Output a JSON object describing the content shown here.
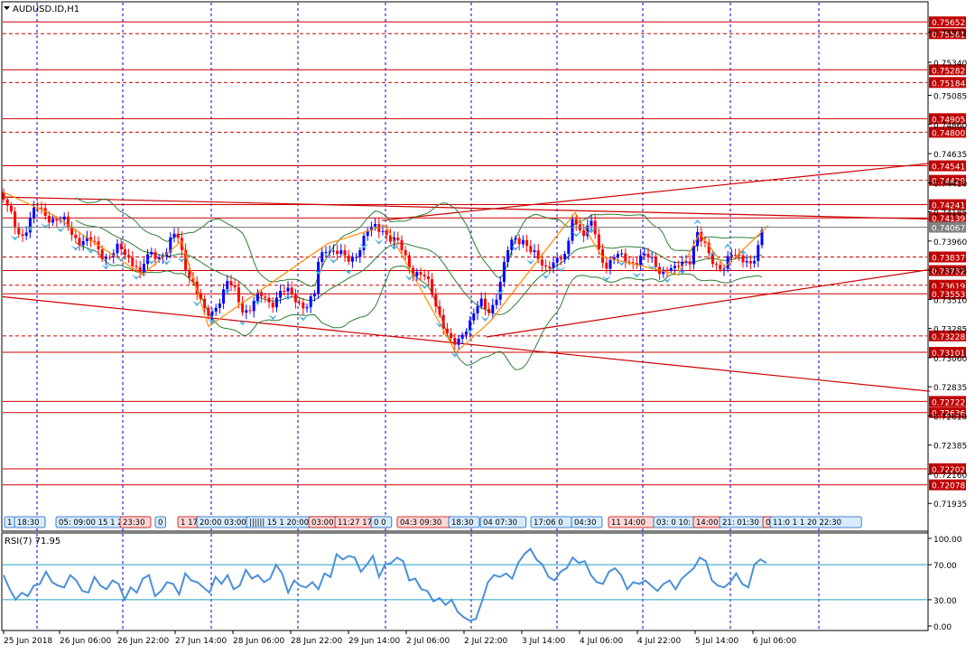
{
  "window": {
    "symbol_label": "AUDUSD.ID,H1"
  },
  "colors": {
    "background": "#ffffff",
    "grid": "#0000cc",
    "level_line": "#cc0000",
    "bull_candle": "#0000ff",
    "bear_candle": "#ff0000",
    "bollinger": "#2e7d32",
    "zigzag": "#ff8c00",
    "rsi_line": "#4a90d9",
    "rsi_levels": "#20a0c0",
    "arrow_marker": "#4ab0e0"
  },
  "chart_data": [
    {
      "type": "candlestick",
      "title": "AUDUSD.ID,H1",
      "ylim": [
        0.7186,
        0.758
      ],
      "price_axis_ticks": [
        "0.75572",
        "0.75340",
        "0.75085",
        "0.74860",
        "0.74635",
        "0.74410",
        "0.74185",
        "0.73960",
        "0.73735",
        "0.73510",
        "0.73285",
        "0.73060",
        "0.72835",
        "0.72610",
        "0.72385",
        "0.72160",
        "0.71935"
      ],
      "horizontal_levels": [
        {
          "value": "0.75652",
          "style": "solid"
        },
        {
          "value": "0.75561",
          "style": "dashed"
        },
        {
          "value": "0.75282",
          "style": "solid"
        },
        {
          "value": "0.75184",
          "style": "dashed"
        },
        {
          "value": "0.74905",
          "style": "solid"
        },
        {
          "value": "0.74800",
          "style": "dashed"
        },
        {
          "value": "0.74541",
          "style": "solid"
        },
        {
          "value": "0.74429",
          "style": "dashed"
        },
        {
          "value": "0.74241",
          "style": "solid"
        },
        {
          "value": "0.74139",
          "style": "solid"
        },
        {
          "value": "0.73837",
          "style": "dashed"
        },
        {
          "value": "0.73732",
          "style": "solid"
        },
        {
          "value": "0.73619",
          "style": "dashed"
        },
        {
          "value": "0.73553",
          "style": "solid"
        },
        {
          "value": "0.73228",
          "style": "dashed"
        },
        {
          "value": "0.73101",
          "style": "solid"
        },
        {
          "value": "0.72722",
          "style": "solid"
        },
        {
          "value": "0.72636",
          "style": "solid"
        },
        {
          "value": "0.72202",
          "style": "solid"
        },
        {
          "value": "0.72078",
          "style": "solid"
        }
      ],
      "current_price": "0.74067",
      "close_path": [
        [
          0,
          0.7434
        ],
        [
          8,
          0.742
        ],
        [
          16,
          0.7408
        ],
        [
          24,
          0.7402
        ],
        [
          32,
          0.741
        ],
        [
          40,
          0.742
        ],
        [
          48,
          0.7418
        ],
        [
          56,
          0.7416
        ],
        [
          64,
          0.7412
        ],
        [
          72,
          0.7408
        ],
        [
          80,
          0.7402
        ],
        [
          90,
          0.7398
        ],
        [
          100,
          0.7394
        ],
        [
          110,
          0.7388
        ],
        [
          120,
          0.7386
        ],
        [
          130,
          0.7388
        ],
        [
          140,
          0.7384
        ],
        [
          150,
          0.7382
        ],
        [
          155,
          0.737
        ],
        [
          160,
          0.7378
        ],
        [
          168,
          0.7384
        ],
        [
          176,
          0.7386
        ],
        [
          184,
          0.739
        ],
        [
          192,
          0.7398
        ],
        [
          198,
          0.7396
        ],
        [
          204,
          0.738
        ],
        [
          212,
          0.737
        ],
        [
          220,
          0.7352
        ],
        [
          228,
          0.7336
        ],
        [
          236,
          0.7344
        ],
        [
          244,
          0.7354
        ],
        [
          252,
          0.7362
        ],
        [
          260,
          0.7356
        ],
        [
          268,
          0.7346
        ],
        [
          276,
          0.7344
        ],
        [
          284,
          0.735
        ],
        [
          292,
          0.7352
        ],
        [
          300,
          0.735
        ],
        [
          310,
          0.7356
        ],
        [
          320,
          0.7354
        ],
        [
          330,
          0.7352
        ],
        [
          340,
          0.7346
        ],
        [
          348,
          0.735
        ],
        [
          352,
          0.7376
        ],
        [
          360,
          0.7394
        ],
        [
          368,
          0.739
        ],
        [
          376,
          0.7384
        ],
        [
          384,
          0.738
        ],
        [
          392,
          0.7386
        ],
        [
          400,
          0.7394
        ],
        [
          408,
          0.7402
        ],
        [
          416,
          0.7406
        ],
        [
          424,
          0.7408
        ],
        [
          432,
          0.7398
        ],
        [
          440,
          0.7392
        ],
        [
          448,
          0.7386
        ],
        [
          456,
          0.7376
        ],
        [
          464,
          0.737
        ],
        [
          472,
          0.7364
        ],
        [
          480,
          0.7354
        ],
        [
          488,
          0.734
        ],
        [
          496,
          0.7322
        ],
        [
          502,
          0.7312
        ],
        [
          508,
          0.7318
        ],
        [
          516,
          0.7332
        ],
        [
          524,
          0.734
        ],
        [
          532,
          0.7346
        ],
        [
          540,
          0.734
        ],
        [
          548,
          0.7352
        ],
        [
          556,
          0.737
        ],
        [
          564,
          0.739
        ],
        [
          572,
          0.7398
        ],
        [
          580,
          0.74
        ],
        [
          588,
          0.7388
        ],
        [
          596,
          0.7378
        ],
        [
          604,
          0.7376
        ],
        [
          612,
          0.7384
        ],
        [
          620,
          0.738
        ],
        [
          628,
          0.7382
        ],
        [
          634,
          0.7416
        ],
        [
          640,
          0.741
        ],
        [
          648,
          0.7402
        ],
        [
          656,
          0.7408
        ],
        [
          664,
          0.7386
        ],
        [
          672,
          0.738
        ],
        [
          680,
          0.7384
        ],
        [
          690,
          0.738
        ],
        [
          700,
          0.7382
        ],
        [
          710,
          0.7384
        ],
        [
          720,
          0.738
        ],
        [
          730,
          0.7376
        ],
        [
          740,
          0.7376
        ],
        [
          748,
          0.737
        ],
        [
          756,
          0.738
        ],
        [
          764,
          0.7384
        ],
        [
          772,
          0.7402
        ],
        [
          778,
          0.7392
        ],
        [
          786,
          0.7384
        ],
        [
          794,
          0.738
        ],
        [
          802,
          0.7376
        ],
        [
          810,
          0.7382
        ],
        [
          818,
          0.7384
        ],
        [
          826,
          0.7386
        ],
        [
          832,
          0.7378
        ],
        [
          838,
          0.7382
        ],
        [
          844,
          0.74
        ],
        [
          848,
          0.7408
        ]
      ],
      "zigzag_points": [
        [
          0,
          0.7434
        ],
        [
          56,
          0.7416
        ],
        [
          155,
          0.737
        ],
        [
          198,
          0.7396
        ],
        [
          228,
          0.733
        ],
        [
          360,
          0.7394
        ],
        [
          424,
          0.7408
        ],
        [
          502,
          0.731
        ],
        [
          540,
          0.7334
        ],
        [
          634,
          0.7418
        ],
        [
          664,
          0.7384
        ],
        [
          748,
          0.737
        ],
        [
          772,
          0.7402
        ],
        [
          800,
          0.7376
        ],
        [
          848,
          0.7408
        ]
      ],
      "trend_lines": [
        {
          "from": [
            0,
            0.743
          ],
          "to": [
            1030,
            0.7413
          ]
        },
        {
          "from": [
            0,
            0.7353
          ],
          "to": [
            1030,
            0.728
          ]
        },
        {
          "from": [
            420,
            0.7412
          ],
          "to": [
            1030,
            0.7456
          ]
        },
        {
          "from": [
            536,
            0.7322
          ],
          "to": [
            1030,
            0.7374
          ]
        }
      ],
      "x_ticks": [
        "25 Jun 2018",
        "26 Jun 06:00",
        "26 Jun 22:00",
        "27 Jun 14:00",
        "28 Jun 06:00",
        "28 Jun 22:00",
        "29 Jun 14:00",
        "2 Jul 06:00",
        "2 Jul 22:00",
        "3 Jul 14:00",
        "4 Jul 06:00",
        "4 Jul 22:00",
        "5 Jul 14:00",
        "6 Jul 06:00"
      ],
      "session_labels": [
        {
          "text": "1",
          "color": "blue"
        },
        {
          "text": "18:30",
          "color": "blue"
        },
        {
          "text": "05: 09:00 15 1 20",
          "color": "blue"
        },
        {
          "text": "23:30",
          "color": "red"
        },
        {
          "text": "0",
          "color": "blue"
        },
        {
          "text": "1 17",
          "color": "red"
        },
        {
          "text": "20:00 03:00",
          "color": "blue"
        },
        {
          "text": "|||||| 15 1 20:00",
          "color": "blue"
        },
        {
          "text": "03:00",
          "color": "red"
        },
        {
          "text": "11:27 17 2",
          "color": "red"
        },
        {
          "text": "0 0",
          "color": "blue"
        },
        {
          "text": "04:3 09:30",
          "color": "red"
        },
        {
          "text": "18:30",
          "color": "blue"
        },
        {
          "text": "04 07:30",
          "color": "blue"
        },
        {
          "text": "17:06 0",
          "color": "blue"
        },
        {
          "text": "04:30",
          "color": "blue"
        },
        {
          "text": "11 14:00",
          "color": "red"
        },
        {
          "text": "03: 0 10:",
          "color": "blue"
        },
        {
          "text": "14:00",
          "color": "red"
        },
        {
          "text": "21: 01:30",
          "color": "blue"
        },
        {
          "text": "0",
          "color": "red"
        },
        {
          "text": "11:0 1 1 20 22:30",
          "color": "blue"
        }
      ]
    },
    {
      "type": "line",
      "title": "RSI(7) 71.95",
      "ylim": [
        0,
        100
      ],
      "axis_ticks": [
        "100.00",
        "70.00",
        "30.00",
        "0.00"
      ],
      "levels": [
        70,
        30
      ],
      "values": [
        58,
        42,
        30,
        38,
        34,
        46,
        48,
        62,
        50,
        46,
        44,
        58,
        52,
        40,
        38,
        56,
        46,
        42,
        52,
        48,
        30,
        44,
        38,
        54,
        58,
        34,
        40,
        50,
        48,
        36,
        60,
        52,
        50,
        44,
        38,
        56,
        48,
        58,
        42,
        46,
        64,
        54,
        58,
        50,
        54,
        70,
        60,
        38,
        52,
        46,
        44,
        50,
        42,
        60,
        56,
        82,
        76,
        80,
        78,
        62,
        70,
        80,
        56,
        70,
        72,
        78,
        74,
        52,
        54,
        42,
        40,
        28,
        32,
        24,
        30,
        16,
        10,
        6,
        8,
        28,
        50,
        58,
        56,
        60,
        54,
        72,
        82,
        88,
        76,
        70,
        56,
        52,
        62,
        66,
        78,
        72,
        74,
        58,
        50,
        48,
        62,
        66,
        58,
        42,
        50,
        48,
        52,
        46,
        40,
        48,
        52,
        42,
        54,
        60,
        66,
        78,
        74,
        52,
        46,
        44,
        50,
        60,
        48,
        44,
        70,
        76,
        72
      ]
    }
  ]
}
